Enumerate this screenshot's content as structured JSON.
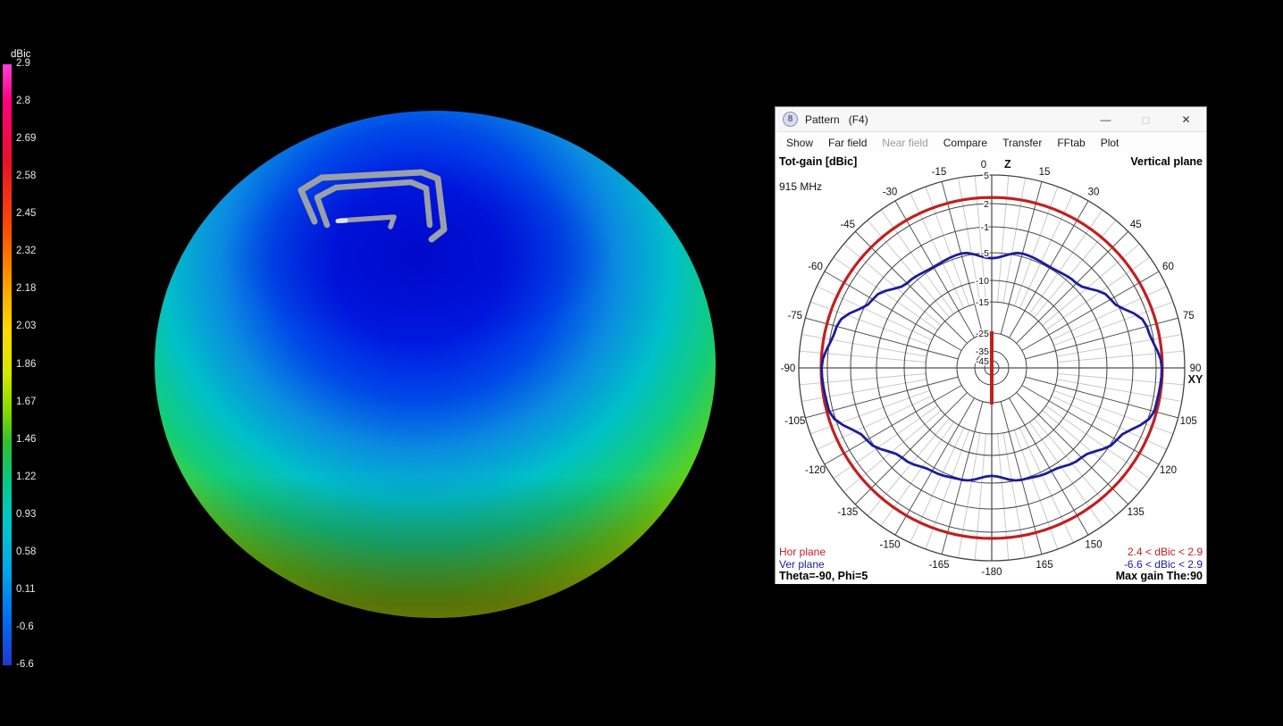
{
  "colorbar": {
    "title": "dBic",
    "ticks": [
      "2.9",
      "2.8",
      "2.69",
      "2.58",
      "2.45",
      "2.32",
      "2.18",
      "2.03",
      "1.86",
      "1.67",
      "1.46",
      "1.22",
      "0.93",
      "0.58",
      "0.11",
      "-0.6",
      "-6.6"
    ],
    "gradient": [
      [
        "#ff40d8",
        0
      ],
      [
        "#ff0080",
        6
      ],
      [
        "#e81028",
        16
      ],
      [
        "#ff5000",
        28
      ],
      [
        "#ffa000",
        37
      ],
      [
        "#ffd800",
        44
      ],
      [
        "#d8e800",
        51
      ],
      [
        "#80d800",
        58
      ],
      [
        "#30c030",
        63
      ],
      [
        "#00c890",
        70
      ],
      [
        "#00c8c8",
        76
      ],
      [
        "#00a8e8",
        84
      ],
      [
        "#0070f0",
        92
      ],
      [
        "#2038d0",
        100
      ]
    ]
  },
  "window": {
    "title": "Pattern",
    "title_suffix": "(F4)",
    "icon_glyph": "8",
    "controls": {
      "minimize": "—",
      "maximize": "◻",
      "close": "✕"
    },
    "menu": [
      {
        "label": "Show",
        "enabled": true
      },
      {
        "label": "Far field",
        "enabled": true
      },
      {
        "label": "Near field",
        "enabled": false
      },
      {
        "label": "Compare",
        "enabled": true
      },
      {
        "label": "Transfer",
        "enabled": true
      },
      {
        "label": "FFtab",
        "enabled": true
      },
      {
        "label": "Plot",
        "enabled": true
      }
    ]
  },
  "plot": {
    "header_left": "Tot-gain [dBic]",
    "frequency": "915 MHz",
    "header_right": "Vertical plane",
    "footer": {
      "hor_label": "Hor plane",
      "ver_label": "Ver plane",
      "cursor": "Theta=-90, Phi=5",
      "hor_range": "2.4 < dBic < 2.9",
      "ver_range": "-6.6 < dBic < 2.9",
      "max_gain": "Max gain The:90"
    }
  },
  "chart_data": {
    "type": "polar",
    "title": "Tot-gain [dBic] — Vertical plane",
    "frequency": "915 MHz",
    "radial_rings_db": [
      5,
      2,
      -1,
      -5,
      -10,
      -15,
      -25,
      -35,
      -45
    ],
    "radial_range_db": [
      -45,
      5
    ],
    "angle_tick_step_deg": 15,
    "angle_minor_step_deg": 5,
    "axis_labels": {
      "top": "Z",
      "right": "XY"
    },
    "z_axis_marker_color": "#c02020",
    "angle_labels": [
      {
        "a": 0,
        "t": "0",
        "dx": -9
      },
      {
        "a": 15,
        "t": "15"
      },
      {
        "a": 30,
        "t": "30"
      },
      {
        "a": 45,
        "t": "45"
      },
      {
        "a": 60,
        "t": "60"
      },
      {
        "a": 75,
        "t": "75"
      },
      {
        "a": 90,
        "t": "90"
      },
      {
        "a": 105,
        "t": "105"
      },
      {
        "a": 120,
        "t": "120"
      },
      {
        "a": 135,
        "t": "135"
      },
      {
        "a": 150,
        "t": "150"
      },
      {
        "a": 165,
        "t": "165"
      },
      {
        "a": 180,
        "t": "-180"
      },
      {
        "a": -15,
        "t": "-15"
      },
      {
        "a": -30,
        "t": "-30"
      },
      {
        "a": -45,
        "t": "-45"
      },
      {
        "a": -60,
        "t": "-60"
      },
      {
        "a": -75,
        "t": "-75"
      },
      {
        "a": -90,
        "t": "-90"
      },
      {
        "a": -105,
        "t": "-105"
      },
      {
        "a": -120,
        "t": "-120"
      },
      {
        "a": -135,
        "t": "-135"
      },
      {
        "a": -150,
        "t": "-150"
      },
      {
        "a": -165,
        "t": "-165"
      }
    ],
    "series": [
      {
        "name": "Hor plane",
        "color": "#c02020",
        "width": 3.2,
        "range": "2.4 < dBic < 2.9",
        "points": [
          [
            -180,
            2.65
          ],
          [
            -150,
            2.65
          ],
          [
            -120,
            2.65
          ],
          [
            -90,
            2.65
          ],
          [
            -60,
            2.65
          ],
          [
            -30,
            2.65
          ],
          [
            0,
            2.65
          ],
          [
            30,
            2.65
          ],
          [
            60,
            2.65
          ],
          [
            90,
            2.65
          ],
          [
            120,
            2.65
          ],
          [
            150,
            2.65
          ],
          [
            180,
            2.65
          ]
        ]
      },
      {
        "name": "Ver plane",
        "color": "#1c1c9c",
        "width": 2.8,
        "range": "-6.6 < dBic < 2.9",
        "points": [
          [
            -180,
            -6.3
          ],
          [
            -165,
            -4.9
          ],
          [
            -150,
            -4.4
          ],
          [
            -135,
            -3.2
          ],
          [
            -120,
            -0.6
          ],
          [
            -105,
            2.4
          ],
          [
            -90,
            2.6
          ],
          [
            -75,
            1.5
          ],
          [
            -60,
            -1.6
          ],
          [
            -45,
            -4.3
          ],
          [
            -30,
            -4.8
          ],
          [
            -15,
            -4.5
          ],
          [
            0,
            -6.0
          ],
          [
            15,
            -4.5
          ],
          [
            30,
            -4.8
          ],
          [
            45,
            -4.3
          ],
          [
            60,
            -1.6
          ],
          [
            75,
            1.5
          ],
          [
            90,
            2.6
          ],
          [
            105,
            2.4
          ],
          [
            120,
            -0.6
          ],
          [
            135,
            -3.2
          ],
          [
            150,
            -4.4
          ],
          [
            165,
            -4.9
          ],
          [
            180,
            -6.3
          ]
        ]
      }
    ],
    "max_gain_annotation": "Max gain The:90",
    "cursor_annotation": "Theta=-90, Phi=5"
  }
}
